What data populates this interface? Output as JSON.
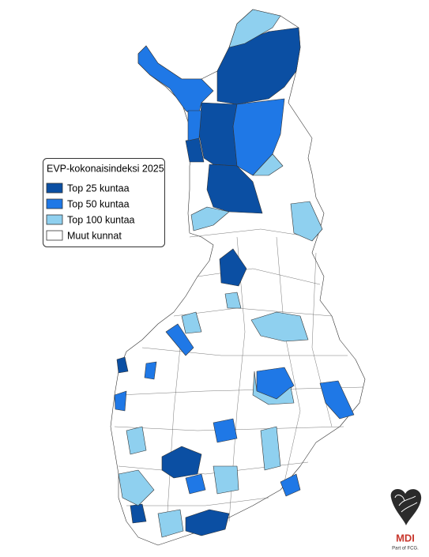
{
  "legend": {
    "title": "EVP-kokonaisindeksi 2025",
    "items": [
      {
        "label": "Top 25 kuntaa",
        "color": "#0b4fa3"
      },
      {
        "label": "Top 50 kuntaa",
        "color": "#1f78e6"
      },
      {
        "label": "Top 100 kuntaa",
        "color": "#8fd0ef"
      },
      {
        "label": "Muut kunnat",
        "color": "#ffffff"
      }
    ]
  },
  "logo": {
    "name": "MDI",
    "tagline": "Part of FCG."
  }
}
